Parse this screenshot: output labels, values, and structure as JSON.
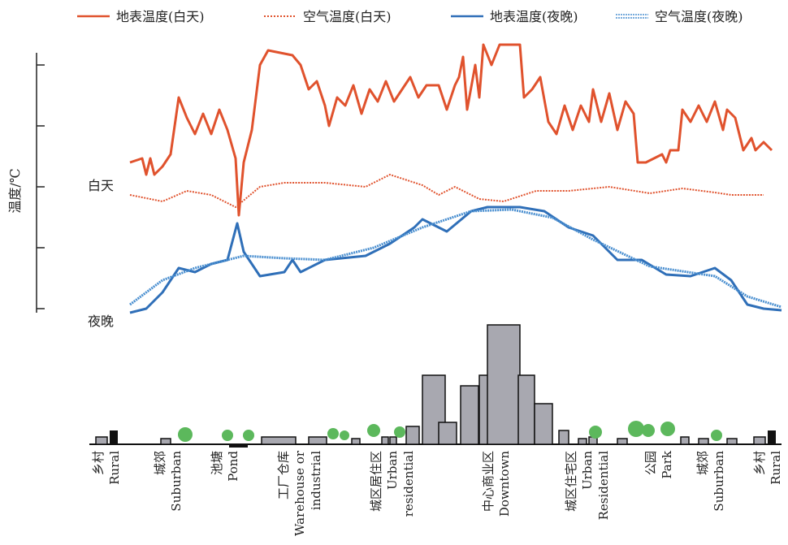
{
  "legend": [
    "地表温度(白天)",
    "空气温度(白天)",
    "地表温度(夜晚)",
    "空气温度(夜晚)"
  ],
  "y_axis_label": "温度/℃",
  "day_label": "白天",
  "night_label": "夜晚",
  "zones": [
    {
      "zh": "乡村",
      "en": [
        "Rural"
      ]
    },
    {
      "zh": "城郊",
      "en": [
        "Suburban"
      ]
    },
    {
      "zh": "池塘",
      "en": [
        "Pond"
      ]
    },
    {
      "zh": "工厂仓库",
      "en": [
        "Warehouse or",
        "industrial"
      ]
    },
    {
      "zh": "城区居住区",
      "en": [
        "Urban",
        "residential"
      ]
    },
    {
      "zh": "中心商业区",
      "en": [
        "Downtown"
      ]
    },
    {
      "zh": "城区住宅区",
      "en": [
        "Urban",
        "Residential"
      ]
    },
    {
      "zh": "公园",
      "en": [
        "Park"
      ]
    },
    {
      "zh": "城郊",
      "en": [
        "Suburban"
      ]
    },
    {
      "zh": "乡村",
      "en": [
        "Rural"
      ]
    }
  ]
}
